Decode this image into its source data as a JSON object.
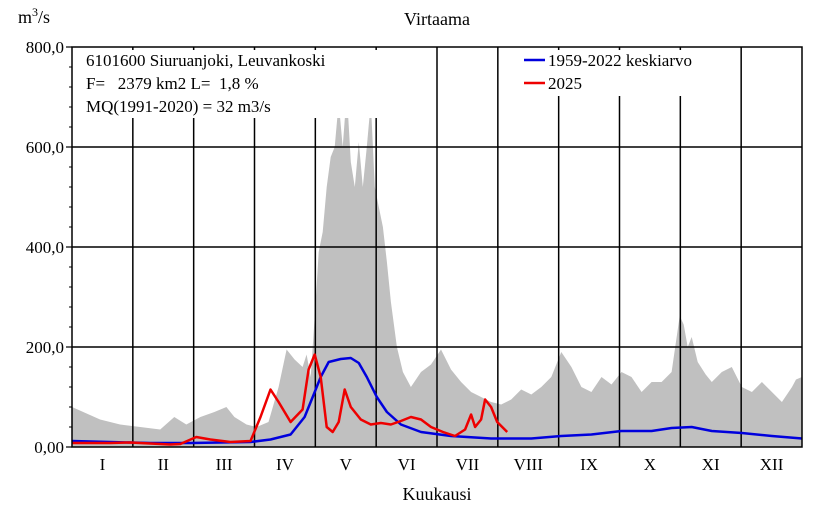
{
  "chart_data": {
    "type": "area",
    "title": "Virtaama",
    "ylabel": {
      "base": "m",
      "sup": "3",
      "rest": "/s"
    },
    "xlabel": "Kuukausi",
    "ylim": [
      0,
      800
    ],
    "yticks": [
      {
        "value": 0,
        "label": "0,00"
      },
      {
        "value": 200,
        "label": "200,0"
      },
      {
        "value": 400,
        "label": "400,0"
      },
      {
        "value": 600,
        "label": "600,0"
      },
      {
        "value": 800,
        "label": "800,0"
      }
    ],
    "months": [
      "I",
      "II",
      "III",
      "IV",
      "V",
      "VI",
      "VII",
      "VIII",
      "IX",
      "X",
      "XI",
      "XII"
    ],
    "xlim_days": [
      1,
      365
    ],
    "grid": true,
    "info": [
      "6101600 Siuruanjoki, Leuvankoski",
      "F=   2379 km2 L=  1,8 %",
      "MQ(1991-2020) = 32 m3/s"
    ],
    "legend_position": "top-right",
    "colors": {
      "range": "#c0c0c0",
      "mean": "#0000dd",
      "current": "#ee0000"
    },
    "series": [
      {
        "name": "1959-2022 keskiarvo",
        "color": "#0000dd",
        "points": [
          [
            1,
            12
          ],
          [
            20,
            10
          ],
          [
            40,
            8
          ],
          [
            60,
            8
          ],
          [
            75,
            9
          ],
          [
            90,
            10
          ],
          [
            100,
            15
          ],
          [
            110,
            25
          ],
          [
            117,
            60
          ],
          [
            121,
            100
          ],
          [
            125,
            140
          ],
          [
            129,
            170
          ],
          [
            135,
            176
          ],
          [
            140,
            178
          ],
          [
            144,
            168
          ],
          [
            148,
            140
          ],
          [
            153,
            100
          ],
          [
            158,
            70
          ],
          [
            165,
            45
          ],
          [
            175,
            30
          ],
          [
            190,
            22
          ],
          [
            210,
            17
          ],
          [
            230,
            17
          ],
          [
            245,
            22
          ],
          [
            260,
            25
          ],
          [
            275,
            32
          ],
          [
            290,
            32
          ],
          [
            300,
            38
          ],
          [
            310,
            40
          ],
          [
            320,
            32
          ],
          [
            335,
            28
          ],
          [
            350,
            22
          ],
          [
            365,
            17
          ]
        ]
      },
      {
        "name": "2025",
        "color": "#ee0000",
        "points": [
          [
            1,
            8
          ],
          [
            20,
            8
          ],
          [
            30,
            9
          ],
          [
            40,
            7
          ],
          [
            50,
            5
          ],
          [
            55,
            6
          ],
          [
            63,
            20
          ],
          [
            70,
            15
          ],
          [
            80,
            10
          ],
          [
            90,
            12
          ],
          [
            95,
            60
          ],
          [
            100,
            115
          ],
          [
            104,
            90
          ],
          [
            110,
            50
          ],
          [
            116,
            75
          ],
          [
            119,
            155
          ],
          [
            122,
            185
          ],
          [
            125,
            140
          ],
          [
            128,
            40
          ],
          [
            131,
            30
          ],
          [
            134,
            50
          ],
          [
            137,
            115
          ],
          [
            140,
            80
          ],
          [
            145,
            55
          ],
          [
            150,
            45
          ],
          [
            155,
            48
          ],
          [
            160,
            45
          ],
          [
            165,
            52
          ],
          [
            170,
            60
          ],
          [
            175,
            55
          ],
          [
            180,
            40
          ],
          [
            186,
            30
          ],
          [
            192,
            22
          ],
          [
            197,
            35
          ],
          [
            200,
            65
          ],
          [
            202,
            40
          ],
          [
            205,
            55
          ],
          [
            207,
            95
          ],
          [
            210,
            80
          ],
          [
            213,
            50
          ],
          [
            218,
            30
          ]
        ]
      }
    ],
    "range_points": [
      [
        1,
        80
      ],
      [
        15,
        55
      ],
      [
        25,
        45
      ],
      [
        35,
        40
      ],
      [
        45,
        35
      ],
      [
        52,
        60
      ],
      [
        58,
        45
      ],
      [
        65,
        60
      ],
      [
        72,
        70
      ],
      [
        78,
        80
      ],
      [
        82,
        60
      ],
      [
        88,
        45
      ],
      [
        93,
        40
      ],
      [
        99,
        50
      ],
      [
        104,
        120
      ],
      [
        108,
        195
      ],
      [
        112,
        175
      ],
      [
        116,
        160
      ],
      [
        118,
        185
      ],
      [
        120,
        140
      ],
      [
        122,
        260
      ],
      [
        124,
        390
      ],
      [
        126,
        430
      ],
      [
        128,
        520
      ],
      [
        130,
        580
      ],
      [
        132,
        600
      ],
      [
        134,
        690
      ],
      [
        136,
        600
      ],
      [
        138,
        710
      ],
      [
        140,
        570
      ],
      [
        142,
        520
      ],
      [
        144,
        610
      ],
      [
        146,
        520
      ],
      [
        148,
        600
      ],
      [
        150,
        690
      ],
      [
        152,
        520
      ],
      [
        154,
        480
      ],
      [
        156,
        440
      ],
      [
        158,
        370
      ],
      [
        160,
        290
      ],
      [
        163,
        200
      ],
      [
        166,
        150
      ],
      [
        170,
        120
      ],
      [
        175,
        150
      ],
      [
        180,
        165
      ],
      [
        185,
        195
      ],
      [
        190,
        155
      ],
      [
        195,
        130
      ],
      [
        200,
        110
      ],
      [
        205,
        100
      ],
      [
        210,
        90
      ],
      [
        215,
        85
      ],
      [
        220,
        95
      ],
      [
        225,
        115
      ],
      [
        230,
        105
      ],
      [
        235,
        120
      ],
      [
        240,
        140
      ],
      [
        245,
        190
      ],
      [
        250,
        160
      ],
      [
        255,
        120
      ],
      [
        260,
        110
      ],
      [
        265,
        140
      ],
      [
        270,
        125
      ],
      [
        275,
        150
      ],
      [
        280,
        140
      ],
      [
        285,
        110
      ],
      [
        290,
        130
      ],
      [
        295,
        130
      ],
      [
        300,
        150
      ],
      [
        304,
        262
      ],
      [
        306,
        245
      ],
      [
        308,
        200
      ],
      [
        310,
        220
      ],
      [
        313,
        170
      ],
      [
        317,
        145
      ],
      [
        320,
        130
      ],
      [
        325,
        150
      ],
      [
        330,
        160
      ],
      [
        335,
        120
      ],
      [
        340,
        110
      ],
      [
        345,
        130
      ],
      [
        350,
        110
      ],
      [
        355,
        90
      ],
      [
        360,
        120
      ],
      [
        362,
        135
      ],
      [
        365,
        140
      ]
    ]
  }
}
